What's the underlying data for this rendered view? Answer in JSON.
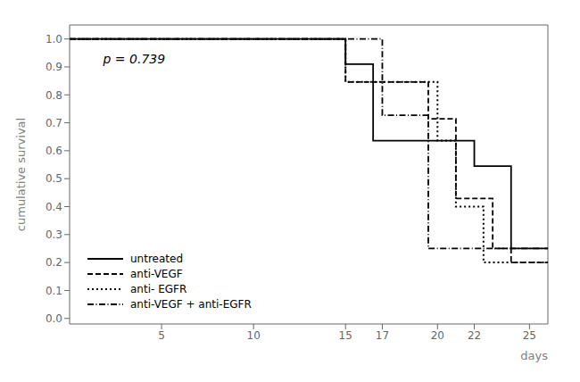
{
  "chart_data": {
    "type": "line",
    "annotations": [
      "p = 0.739"
    ],
    "x_label": "days",
    "y_label": "cumulative survival",
    "xlim": [
      0,
      26
    ],
    "ylim": [
      -0.02,
      1.05
    ],
    "xticks": [
      5,
      10,
      15,
      17,
      20,
      22,
      25
    ],
    "yticks": [
      {
        "value": 0.0,
        "label": "0.0"
      },
      0.1,
      0.2,
      0.3,
      0.4,
      0.5,
      0.6,
      0.7,
      0.8,
      0.9,
      {
        "value": 1.0,
        "label": "1.0"
      }
    ],
    "grid": false,
    "legend": "lower left",
    "series": [
      {
        "name": "untreated",
        "color": "#000000",
        "line_style": "solid",
        "x": [
          0,
          15,
          15,
          16.5,
          16.5,
          22,
          22,
          24,
          24,
          26
        ],
        "values": [
          1.0,
          1.0,
          0.91,
          0.91,
          0.636,
          0.636,
          0.545,
          0.545,
          0.25,
          0.25
        ]
      },
      {
        "name": "anti-VEGF",
        "color": "#000000",
        "line_style": "dashed",
        "x": [
          0,
          15,
          15,
          19.5,
          19.5,
          21,
          21,
          23,
          23,
          24,
          24,
          26
        ],
        "values": [
          1.0,
          1.0,
          0.846,
          0.846,
          0.714,
          0.714,
          0.429,
          0.429,
          0.25,
          0.25,
          0.2,
          0.2
        ]
      },
      {
        "name": "anti- EGFR",
        "color": "#000000",
        "line_style": "dotted",
        "x": [
          0,
          15,
          15,
          20,
          20,
          21,
          21,
          22.5,
          22.5,
          24.5,
          24.5,
          26
        ],
        "values": [
          1.0,
          1.0,
          0.846,
          0.846,
          0.636,
          0.636,
          0.4,
          0.4,
          0.2,
          0.2,
          0.2,
          0.2
        ]
      },
      {
        "name": "anti-VEGF + anti-EGFR",
        "color": "#000000",
        "line_style": "dashdot",
        "x": [
          0,
          17,
          17,
          19.5,
          19.5,
          23,
          23,
          26
        ],
        "values": [
          1.0,
          1.0,
          0.727,
          0.727,
          0.25,
          0.25,
          0.25,
          0.25
        ]
      }
    ]
  }
}
